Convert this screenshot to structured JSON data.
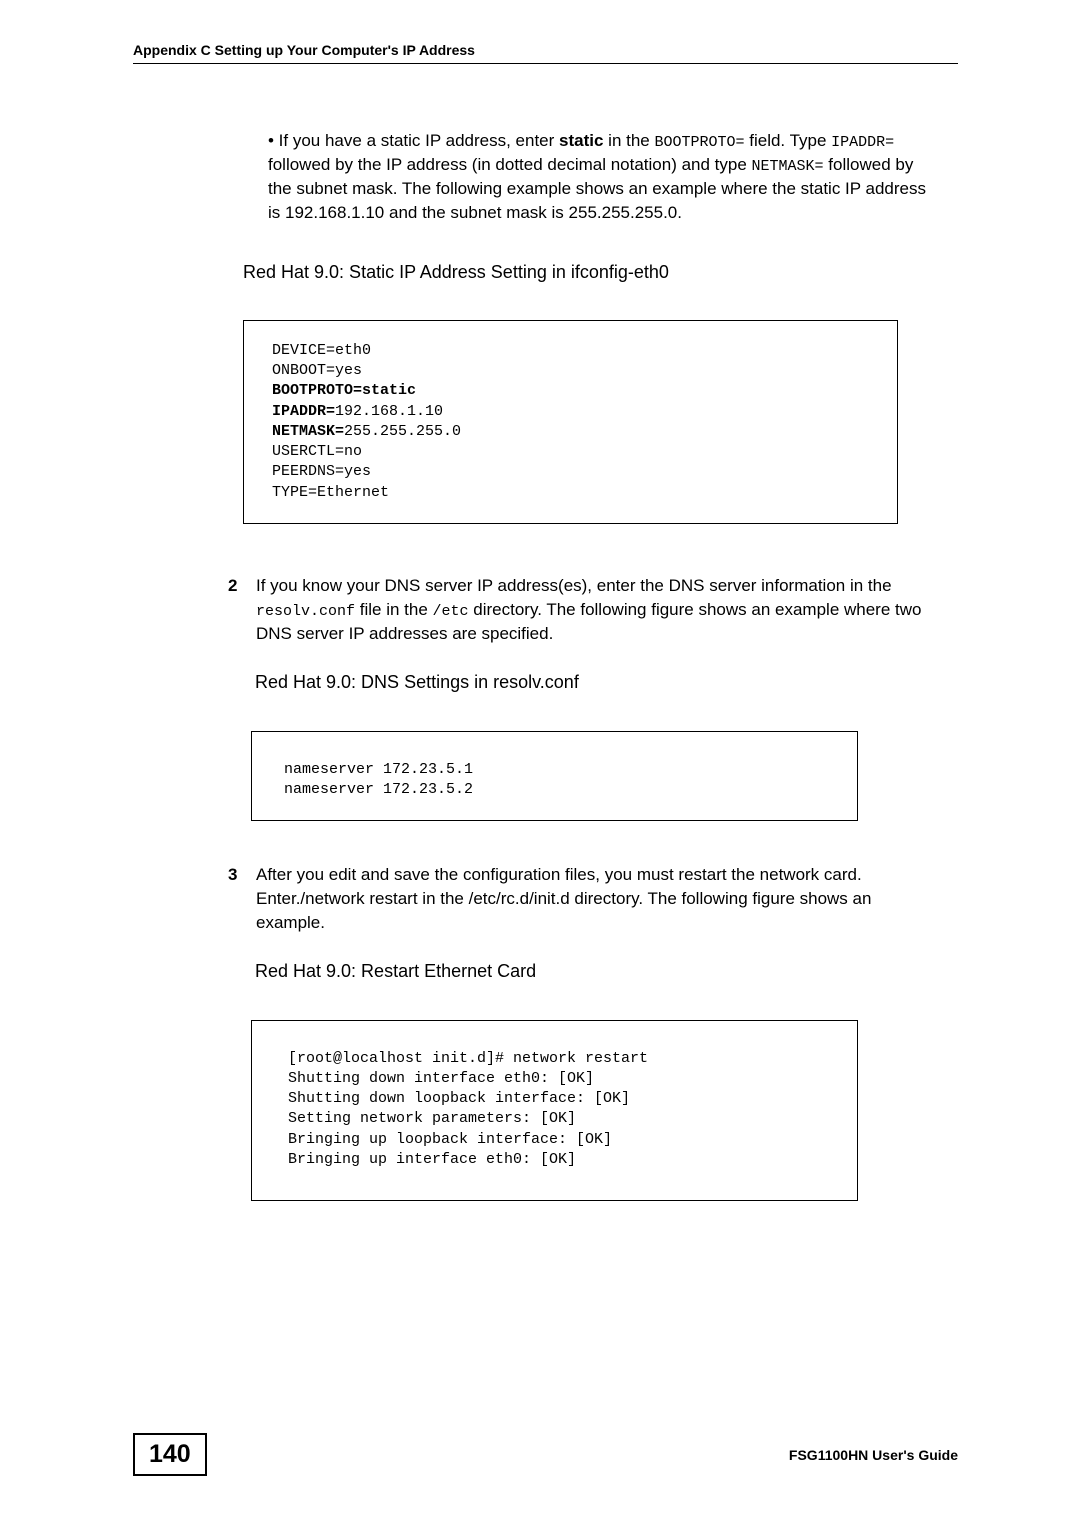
{
  "header": {
    "title": "Appendix C Setting up Your Computer's IP Address"
  },
  "bullet": {
    "prefix": "• If you have a static IP address, enter ",
    "static_word": "static",
    "after_static": " in the ",
    "bootproto_field": "BOOTPROTO=",
    "after_bootproto": " field. Type ",
    "ipaddr_field": "IPADDR=",
    "after_ipaddr": " followed by the IP address (in dotted decimal notation) and type ",
    "netmask_field": "NETMASK=",
    "after_netmask": " followed by the subnet mask. The following example shows an example where the static IP address is 192.168.1.10 and the subnet mask is 255.255.255.0."
  },
  "caption1": "Red Hat 9.0: Static IP Address Setting in ifconfig-eth0",
  "codebox1": {
    "line1": "DEVICE=eth0",
    "line2": "ONBOOT=yes",
    "line3a": "BOOTPROTO=",
    "line3b": "static",
    "line4a": "IPADDR=",
    "line4b": "192.168.1.10",
    "line5a": "NETMASK=",
    "line5b": "255.255.255.0",
    "line6": "USERCTL=no",
    "line7": "PEERDNS=yes",
    "line8": "TYPE=Ethernet"
  },
  "step2": {
    "num": "2",
    "text_a": "If you know your DNS server IP address(es), enter the DNS server information in the ",
    "resolv": "resolv.conf",
    "text_b": " file in the ",
    "etc": "/etc",
    "text_c": " directory. The following figure shows an example where two DNS server IP addresses are specified."
  },
  "caption2": "Red Hat 9.0: DNS Settings in resolv.conf",
  "codebox2": {
    "line1": "nameserver 172.23.5.1",
    "line2": "nameserver 172.23.5.2"
  },
  "step3": {
    "num": "3",
    "text": "After you edit and save the configuration files, you must restart the network card. Enter./network restart in the /etc/rc.d/init.d directory. The following figure shows an example."
  },
  "caption3": "Red Hat 9.0: Restart Ethernet Card",
  "codebox3": {
    "line1": "[root@localhost init.d]# network restart",
    "line2": "Shutting down interface eth0: [OK]",
    "line3": "Shutting down loopback interface: [OK]",
    "line4": "Setting network parameters: [OK]",
    "line5": "Bringing up loopback interface: [OK]",
    "line6": "Bringing up interface eth0: [OK]"
  },
  "footer": {
    "page": "140",
    "guide": "FSG1100HN User's Guide"
  }
}
